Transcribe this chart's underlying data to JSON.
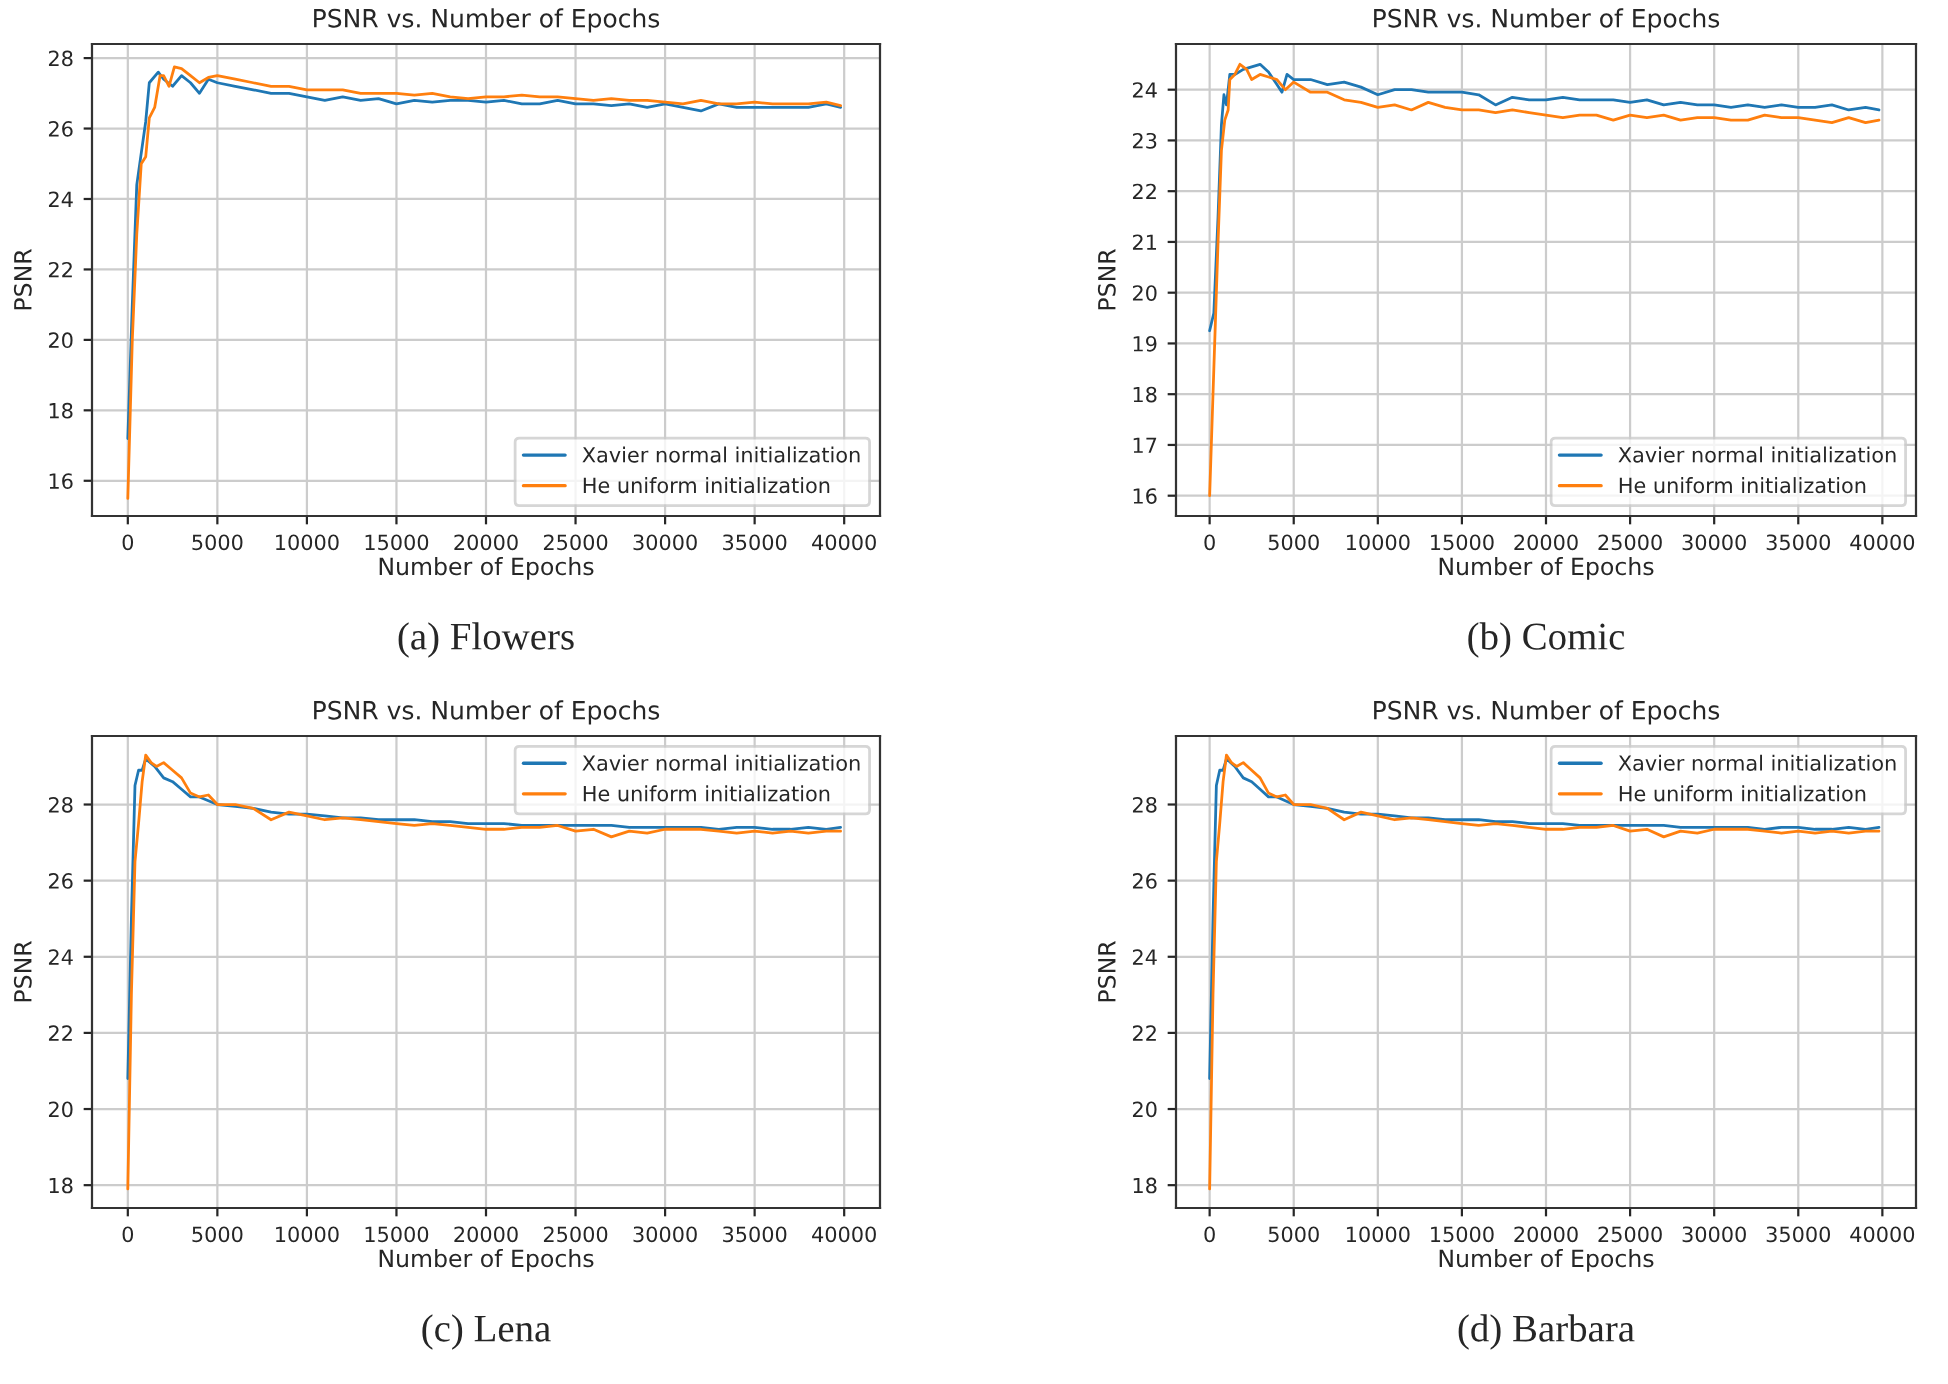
{
  "chart_data": [
    {
      "type": "line",
      "title": "PSNR vs. Number of Epochs",
      "xlabel": "Number of Epochs",
      "ylabel": "PSNR",
      "annotations": [
        "(a) Flowers"
      ],
      "legend": "bottom right",
      "grid": true,
      "xlim": [
        -2000,
        42000
      ],
      "xticks": [
        0,
        5000,
        10000,
        15000,
        20000,
        25000,
        30000,
        35000,
        40000
      ],
      "ylim": [
        15,
        28.4
      ],
      "yticks": [
        16,
        18,
        20,
        22,
        24,
        26,
        28
      ],
      "series": [
        {
          "name": "Xavier normal initialization",
          "color": "#1f77b4",
          "x": [
            0,
            250,
            500,
            1000,
            1200,
            1700,
            2000,
            2500,
            3000,
            3500,
            4000,
            4500,
            5000,
            6000,
            7000,
            8000,
            9000,
            10000,
            11000,
            12000,
            13000,
            14000,
            15000,
            16000,
            17000,
            18000,
            19000,
            20000,
            21000,
            22000,
            23000,
            24000,
            25000,
            26000,
            27000,
            28000,
            29000,
            30000,
            31000,
            32000,
            33000,
            34000,
            35000,
            36000,
            37000,
            38000,
            39000,
            39800
          ],
          "values": [
            17.2,
            21,
            24.4,
            26.2,
            27.3,
            27.6,
            27.4,
            27.2,
            27.5,
            27.3,
            27.0,
            27.4,
            27.3,
            27.2,
            27.1,
            27.0,
            27.0,
            26.9,
            26.8,
            26.9,
            26.8,
            26.85,
            26.7,
            26.8,
            26.75,
            26.8,
            26.8,
            26.75,
            26.8,
            26.7,
            26.7,
            26.8,
            26.7,
            26.7,
            26.65,
            26.7,
            26.6,
            26.7,
            26.6,
            26.5,
            26.7,
            26.6,
            26.6,
            26.6,
            26.6,
            26.6,
            26.7,
            26.6
          ]
        },
        {
          "name": "He uniform initialization",
          "color": "#ff7f0e",
          "x": [
            0,
            250,
            500,
            750,
            1000,
            1200,
            1500,
            1800,
            2000,
            2300,
            2600,
            3000,
            3500,
            4000,
            4500,
            5000,
            6000,
            7000,
            8000,
            9000,
            10000,
            11000,
            12000,
            13000,
            14000,
            15000,
            16000,
            17000,
            18000,
            19000,
            20000,
            21000,
            22000,
            23000,
            24000,
            25000,
            26000,
            27000,
            28000,
            29000,
            30000,
            31000,
            32000,
            33000,
            34000,
            35000,
            36000,
            37000,
            38000,
            39000,
            39800
          ],
          "values": [
            15.5,
            20,
            23,
            25.0,
            25.2,
            26.3,
            26.6,
            27.5,
            27.5,
            27.2,
            27.75,
            27.7,
            27.5,
            27.3,
            27.45,
            27.5,
            27.4,
            27.3,
            27.2,
            27.2,
            27.1,
            27.1,
            27.1,
            27.0,
            27.0,
            27.0,
            26.95,
            27.0,
            26.9,
            26.85,
            26.9,
            26.9,
            26.95,
            26.9,
            26.9,
            26.85,
            26.8,
            26.85,
            26.8,
            26.8,
            26.75,
            26.7,
            26.8,
            26.7,
            26.7,
            26.75,
            26.7,
            26.7,
            26.7,
            26.75,
            26.65
          ]
        }
      ]
    },
    {
      "type": "line",
      "title": "PSNR vs. Number of Epochs",
      "xlabel": "Number of Epochs",
      "ylabel": "PSNR",
      "annotations": [
        "(b) Comic"
      ],
      "legend": "bottom right",
      "grid": true,
      "xlim": [
        -2000,
        42000
      ],
      "xticks": [
        0,
        5000,
        10000,
        15000,
        20000,
        25000,
        30000,
        35000,
        40000
      ],
      "ylim": [
        15.6,
        24.9
      ],
      "yticks": [
        16,
        17,
        18,
        19,
        20,
        21,
        22,
        23,
        24
      ],
      "series": [
        {
          "name": "Xavier normal initialization",
          "color": "#1f77b4",
          "x": [
            0,
            250,
            500,
            700,
            850,
            1000,
            1200,
            1500,
            2000,
            2500,
            3000,
            3500,
            4000,
            4300,
            4600,
            5000,
            6000,
            7000,
            8000,
            9000,
            10000,
            11000,
            12000,
            13000,
            14000,
            15000,
            16000,
            17000,
            18000,
            19000,
            20000,
            21000,
            22000,
            23000,
            24000,
            25000,
            26000,
            27000,
            28000,
            29000,
            30000,
            31000,
            32000,
            33000,
            34000,
            35000,
            36000,
            37000,
            38000,
            39000,
            39800
          ],
          "values": [
            19.25,
            19.6,
            21.5,
            23.3,
            23.9,
            23.7,
            24.3,
            24.3,
            24.4,
            24.45,
            24.5,
            24.35,
            24.1,
            23.95,
            24.3,
            24.2,
            24.2,
            24.1,
            24.15,
            24.05,
            23.9,
            24.0,
            24.0,
            23.95,
            23.95,
            23.95,
            23.9,
            23.7,
            23.85,
            23.8,
            23.8,
            23.85,
            23.8,
            23.8,
            23.8,
            23.75,
            23.8,
            23.7,
            23.75,
            23.7,
            23.7,
            23.65,
            23.7,
            23.65,
            23.7,
            23.65,
            23.65,
            23.7,
            23.6,
            23.65,
            23.6
          ]
        },
        {
          "name": "He uniform initialization",
          "color": "#ff7f0e",
          "x": [
            0,
            250,
            500,
            700,
            900,
            1100,
            1200,
            1500,
            1800,
            2200,
            2500,
            3000,
            3500,
            4000,
            4500,
            5000,
            6000,
            7000,
            8000,
            9000,
            10000,
            11000,
            12000,
            13000,
            14000,
            15000,
            16000,
            17000,
            18000,
            19000,
            20000,
            21000,
            22000,
            23000,
            24000,
            25000,
            26000,
            27000,
            28000,
            29000,
            30000,
            31000,
            32000,
            33000,
            34000,
            35000,
            36000,
            37000,
            38000,
            39000,
            39800
          ],
          "values": [
            16.0,
            18.5,
            21.0,
            22.8,
            23.4,
            23.6,
            24.2,
            24.3,
            24.5,
            24.4,
            24.2,
            24.3,
            24.25,
            24.2,
            24.0,
            24.15,
            23.95,
            23.95,
            23.8,
            23.75,
            23.65,
            23.7,
            23.6,
            23.75,
            23.65,
            23.6,
            23.6,
            23.55,
            23.6,
            23.55,
            23.5,
            23.45,
            23.5,
            23.5,
            23.4,
            23.5,
            23.45,
            23.5,
            23.4,
            23.45,
            23.45,
            23.4,
            23.4,
            23.5,
            23.45,
            23.45,
            23.4,
            23.35,
            23.45,
            23.35,
            23.4
          ]
        }
      ]
    },
    {
      "type": "line",
      "title": "PSNR vs. Number of Epochs",
      "xlabel": "Number of Epochs",
      "ylabel": "PSNR",
      "annotations": [
        "(c) Lena"
      ],
      "legend": "top right",
      "grid": true,
      "xlim": [
        -2000,
        42000
      ],
      "xticks": [
        0,
        5000,
        10000,
        15000,
        20000,
        25000,
        30000,
        35000,
        40000
      ],
      "ylim": [
        17.4,
        29.8
      ],
      "yticks": [
        18,
        20,
        22,
        24,
        26,
        28
      ],
      "series": [
        {
          "name": "Xavier normal initialization",
          "color": "#1f77b4",
          "x": [
            0,
            200,
            400,
            600,
            800,
            1000,
            1500,
            2000,
            2500,
            3000,
            3500,
            4000,
            4500,
            5000,
            6000,
            7000,
            8000,
            9000,
            10000,
            11000,
            12000,
            13000,
            14000,
            15000,
            16000,
            17000,
            18000,
            19000,
            20000,
            21000,
            22000,
            23000,
            24000,
            25000,
            26000,
            27000,
            28000,
            29000,
            30000,
            31000,
            32000,
            33000,
            34000,
            35000,
            36000,
            37000,
            38000,
            39000,
            39800
          ],
          "values": [
            20.8,
            25,
            28.5,
            28.9,
            28.9,
            29.2,
            29.0,
            28.7,
            28.6,
            28.4,
            28.2,
            28.2,
            28.1,
            28.0,
            27.95,
            27.9,
            27.8,
            27.75,
            27.75,
            27.7,
            27.65,
            27.65,
            27.6,
            27.6,
            27.6,
            27.55,
            27.55,
            27.5,
            27.5,
            27.5,
            27.45,
            27.45,
            27.45,
            27.45,
            27.45,
            27.45,
            27.4,
            27.4,
            27.4,
            27.4,
            27.4,
            27.35,
            27.4,
            27.4,
            27.35,
            27.35,
            27.4,
            27.35,
            27.4
          ]
        },
        {
          "name": "He uniform initialization",
          "color": "#ff7f0e",
          "x": [
            0,
            200,
            400,
            600,
            800,
            1000,
            1300,
            1600,
            2000,
            2500,
            3000,
            3500,
            4000,
            4500,
            5000,
            6000,
            7000,
            8000,
            9000,
            10000,
            11000,
            12000,
            13000,
            14000,
            15000,
            16000,
            17000,
            18000,
            19000,
            20000,
            21000,
            22000,
            23000,
            24000,
            25000,
            26000,
            27000,
            28000,
            29000,
            30000,
            31000,
            32000,
            33000,
            34000,
            35000,
            36000,
            37000,
            38000,
            39000,
            39800
          ],
          "values": [
            17.9,
            23,
            26.5,
            27.5,
            28.6,
            29.3,
            29.1,
            29.0,
            29.1,
            28.9,
            28.7,
            28.3,
            28.2,
            28.25,
            28.0,
            28.0,
            27.9,
            27.6,
            27.8,
            27.7,
            27.6,
            27.65,
            27.6,
            27.55,
            27.5,
            27.45,
            27.5,
            27.45,
            27.4,
            27.35,
            27.35,
            27.4,
            27.4,
            27.45,
            27.3,
            27.35,
            27.15,
            27.3,
            27.25,
            27.35,
            27.35,
            27.35,
            27.3,
            27.25,
            27.3,
            27.25,
            27.3,
            27.25,
            27.3,
            27.3
          ]
        }
      ]
    },
    {
      "type": "line",
      "title": "PSNR vs. Number of Epochs",
      "xlabel": "Number of Epochs",
      "ylabel": "PSNR",
      "annotations": [
        "(d) Barbara"
      ],
      "legend": "top right",
      "grid": true,
      "xlim": [
        -2000,
        42000
      ],
      "xticks": [
        0,
        5000,
        10000,
        15000,
        20000,
        25000,
        30000,
        35000,
        40000
      ],
      "ylim": [
        17.4,
        29.8
      ],
      "yticks": [
        18,
        20,
        22,
        24,
        26,
        28
      ],
      "series": [
        {
          "name": "Xavier normal initialization",
          "color": "#1f77b4",
          "x": [
            0,
            200,
            400,
            600,
            800,
            1000,
            1500,
            2000,
            2500,
            3000,
            3500,
            4000,
            4500,
            5000,
            6000,
            7000,
            8000,
            9000,
            10000,
            11000,
            12000,
            13000,
            14000,
            15000,
            16000,
            17000,
            18000,
            19000,
            20000,
            21000,
            22000,
            23000,
            24000,
            25000,
            26000,
            27000,
            28000,
            29000,
            30000,
            31000,
            32000,
            33000,
            34000,
            35000,
            36000,
            37000,
            38000,
            39000,
            39800
          ],
          "values": [
            20.8,
            25,
            28.5,
            28.9,
            28.9,
            29.2,
            29.0,
            28.7,
            28.6,
            28.4,
            28.2,
            28.2,
            28.1,
            28.0,
            27.95,
            27.9,
            27.8,
            27.75,
            27.75,
            27.7,
            27.65,
            27.65,
            27.6,
            27.6,
            27.6,
            27.55,
            27.55,
            27.5,
            27.5,
            27.5,
            27.45,
            27.45,
            27.45,
            27.45,
            27.45,
            27.45,
            27.4,
            27.4,
            27.4,
            27.4,
            27.4,
            27.35,
            27.4,
            27.4,
            27.35,
            27.35,
            27.4,
            27.35,
            27.4
          ]
        },
        {
          "name": "He uniform initialization",
          "color": "#ff7f0e",
          "x": [
            0,
            200,
            400,
            600,
            800,
            1000,
            1300,
            1600,
            2000,
            2500,
            3000,
            3500,
            4000,
            4500,
            5000,
            6000,
            7000,
            8000,
            9000,
            10000,
            11000,
            12000,
            13000,
            14000,
            15000,
            16000,
            17000,
            18000,
            19000,
            20000,
            21000,
            22000,
            23000,
            24000,
            25000,
            26000,
            27000,
            28000,
            29000,
            30000,
            31000,
            32000,
            33000,
            34000,
            35000,
            36000,
            37000,
            38000,
            39000,
            39800
          ],
          "values": [
            17.9,
            23,
            26.5,
            27.5,
            28.6,
            29.3,
            29.1,
            29.0,
            29.1,
            28.9,
            28.7,
            28.3,
            28.2,
            28.25,
            28.0,
            28.0,
            27.9,
            27.6,
            27.8,
            27.7,
            27.6,
            27.65,
            27.6,
            27.55,
            27.5,
            27.45,
            27.5,
            27.45,
            27.4,
            27.35,
            27.35,
            27.4,
            27.4,
            27.45,
            27.3,
            27.35,
            27.15,
            27.3,
            27.25,
            27.35,
            27.35,
            27.35,
            27.3,
            27.25,
            27.3,
            27.25,
            27.3,
            27.25,
            27.3,
            27.3
          ]
        }
      ]
    }
  ]
}
